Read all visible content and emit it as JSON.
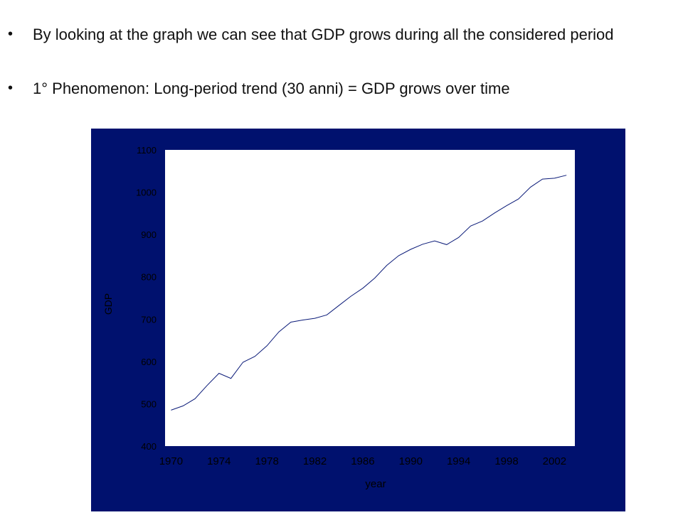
{
  "bullets": [
    "By looking at the graph we can see that GDP grows during all the considered period",
    "1° Phenomenon:  Long-period trend (30 anni) = GDP grows over time"
  ],
  "colors": {
    "panel_background": "#00116e",
    "plot_background": "#ffffff",
    "line": "#0a1a78",
    "text": "#000000"
  },
  "chart_data": {
    "type": "line",
    "title": "",
    "xlabel": "year",
    "ylabel": "GDP",
    "xlim": [
      1969.5,
      2003.7
    ],
    "ylim": [
      400,
      1100
    ],
    "xticks": [
      1970,
      1974,
      1978,
      1982,
      1986,
      1990,
      1994,
      1998,
      2002
    ],
    "yticks": [
      400,
      500,
      600,
      700,
      800,
      900,
      1000,
      1100
    ],
    "grid": false,
    "legend": "none",
    "x": [
      1970,
      1971,
      1972,
      1973,
      1974,
      1975,
      1976,
      1977,
      1978,
      1979,
      1980,
      1981,
      1982,
      1983,
      1984,
      1985,
      1986,
      1987,
      1988,
      1989,
      1990,
      1991,
      1992,
      1993,
      1994,
      1995,
      1996,
      1997,
      1998,
      1999,
      2000,
      2001,
      2002,
      2003
    ],
    "series": [
      {
        "values": [
          485,
          495,
          512,
          543,
          572,
          560,
          598,
          612,
          637,
          670,
          693,
          698,
          702,
          710,
          732,
          754,
          773,
          797,
          827,
          850,
          865,
          877,
          885,
          876,
          893,
          920,
          932,
          951,
          968,
          984,
          1012,
          1031,
          1033,
          1040
        ]
      }
    ]
  }
}
